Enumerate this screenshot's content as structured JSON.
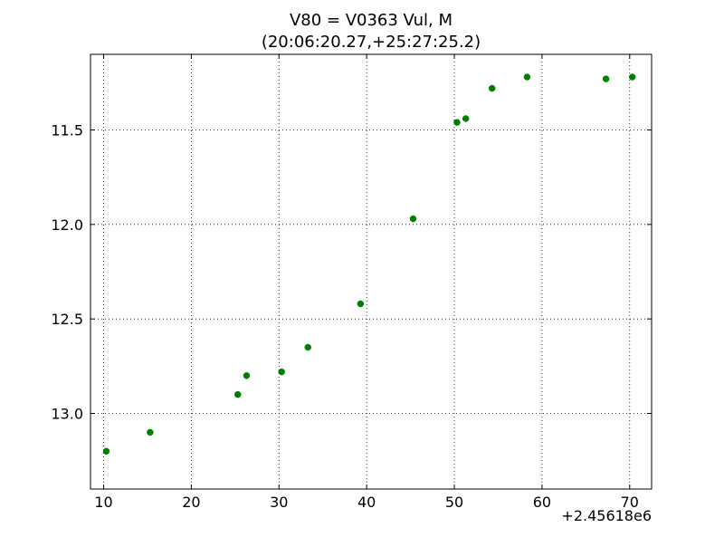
{
  "chart_data": {
    "type": "scatter",
    "title_lines": [
      "V80 = V0363 Vul, M",
      "(20:06:20.27,+25:27:25.2)"
    ],
    "xlabel": "",
    "ylabel": "",
    "x_offset_label": "+2.45618e6",
    "x_ticks": [
      10,
      20,
      30,
      40,
      50,
      60,
      70
    ],
    "x_tick_labels": [
      "10",
      "20",
      "30",
      "40",
      "50",
      "60",
      "70"
    ],
    "y_ticks": [
      11.5,
      12.0,
      12.5,
      13.0
    ],
    "y_tick_labels": [
      "11.5",
      "12.0",
      "12.5",
      "13.0"
    ],
    "xlim": [
      8.5,
      72.5
    ],
    "ylim": [
      11.1,
      13.4
    ],
    "y_inverted": true,
    "grid": true,
    "marker_color": "#008000",
    "series": [
      {
        "x": [
          10.3,
          15.3,
          25.3,
          26.3,
          30.3,
          33.3,
          39.3,
          45.3,
          50.3,
          51.3,
          54.3,
          58.3,
          67.3,
          70.3
        ],
        "y": [
          13.2,
          13.1,
          12.9,
          12.8,
          12.78,
          12.65,
          12.42,
          11.97,
          11.46,
          11.44,
          11.28,
          11.22,
          11.23,
          11.22
        ]
      }
    ]
  }
}
